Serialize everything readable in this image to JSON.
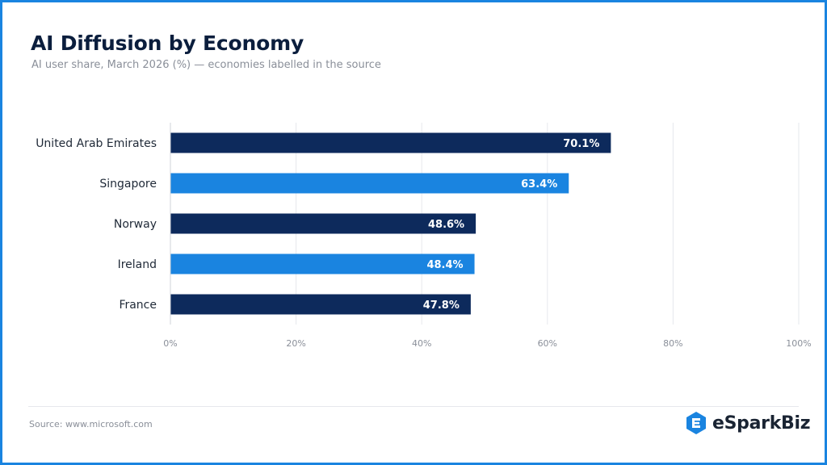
{
  "header": {
    "title": "AI Diffusion by Economy",
    "subtitle": "AI user share, March 2026 (%) — economies labelled in the source"
  },
  "footer": {
    "source": "Source: www.microsoft.com",
    "brand": "eSparkBiz"
  },
  "colors": {
    "dark_bar": "#0d2a5c",
    "light_bar": "#1a84e0",
    "frame": "#1a84e0",
    "grid": "#e6e8ec"
  },
  "icons": {
    "brand_logo": "esparkbiz-logo-icon"
  },
  "chart_data": {
    "type": "bar",
    "orientation": "horizontal",
    "categories": [
      "United Arab Emirates",
      "Singapore",
      "Norway",
      "Ireland",
      "France"
    ],
    "values": [
      70.1,
      63.4,
      48.6,
      48.4,
      47.8
    ],
    "data_labels": [
      "70.1%",
      "63.4%",
      "48.6%",
      "48.4%",
      "47.8%"
    ],
    "bar_colors": [
      "#0d2a5c",
      "#1a84e0",
      "#0d2a5c",
      "#1a84e0",
      "#0d2a5c"
    ],
    "xlim": [
      0,
      100
    ],
    "x_ticks": [
      0,
      20,
      40,
      60,
      80,
      100
    ],
    "x_tick_labels": [
      "0%",
      "20%",
      "40%",
      "60%",
      "80%",
      "100%"
    ],
    "grid": true,
    "legend": "none"
  }
}
